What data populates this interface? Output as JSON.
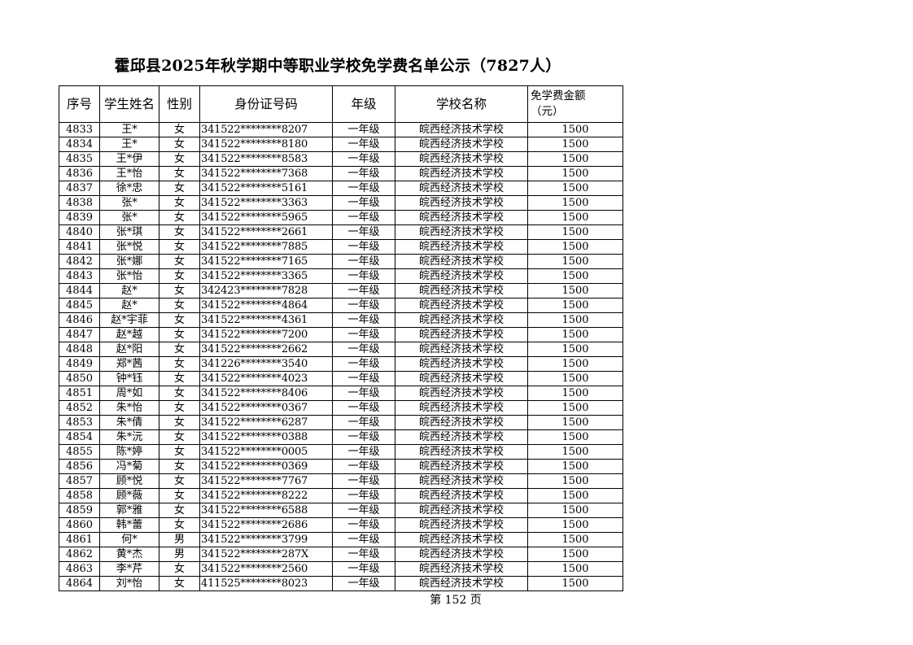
{
  "title": "霍邱县2025年秋学期中等职业学校免学费名单公示（7827人）",
  "headers": {
    "seq": "序号",
    "name": "学生姓名",
    "gender": "性别",
    "id": "身份证号码",
    "grade": "年级",
    "school": "学校名称",
    "amount": "免学费金额",
    "amount_unit": "（元）"
  },
  "rows": [
    [
      "4833",
      "王*",
      "女",
      "341522********8207",
      "一年级",
      "皖西经济技术学校",
      "1500"
    ],
    [
      "4834",
      "王*",
      "女",
      "341522********8180",
      "一年级",
      "皖西经济技术学校",
      "1500"
    ],
    [
      "4835",
      "王*伊",
      "女",
      "341522********8583",
      "一年级",
      "皖西经济技术学校",
      "1500"
    ],
    [
      "4836",
      "王*怡",
      "女",
      "341522********7368",
      "一年级",
      "皖西经济技术学校",
      "1500"
    ],
    [
      "4837",
      "徐*忠",
      "女",
      "341522********5161",
      "一年级",
      "皖西经济技术学校",
      "1500"
    ],
    [
      "4838",
      "张*",
      "女",
      "341522********3363",
      "一年级",
      "皖西经济技术学校",
      "1500"
    ],
    [
      "4839",
      "张*",
      "女",
      "341522********5965",
      "一年级",
      "皖西经济技术学校",
      "1500"
    ],
    [
      "4840",
      "张*琪",
      "女",
      "341522********2661",
      "一年级",
      "皖西经济技术学校",
      "1500"
    ],
    [
      "4841",
      "张*悦",
      "女",
      "341522********7885",
      "一年级",
      "皖西经济技术学校",
      "1500"
    ],
    [
      "4842",
      "张*娜",
      "女",
      "341522********7165",
      "一年级",
      "皖西经济技术学校",
      "1500"
    ],
    [
      "4843",
      "张*怡",
      "女",
      "341522********3365",
      "一年级",
      "皖西经济技术学校",
      "1500"
    ],
    [
      "4844",
      "赵*",
      "女",
      "342423********7828",
      "一年级",
      "皖西经济技术学校",
      "1500"
    ],
    [
      "4845",
      "赵*",
      "女",
      "341522********4864",
      "一年级",
      "皖西经济技术学校",
      "1500"
    ],
    [
      "4846",
      "赵*宇菲",
      "女",
      "341522********4361",
      "一年级",
      "皖西经济技术学校",
      "1500"
    ],
    [
      "4847",
      "赵*越",
      "女",
      "341522********7200",
      "一年级",
      "皖西经济技术学校",
      "1500"
    ],
    [
      "4848",
      "赵*阳",
      "女",
      "341522********2662",
      "一年级",
      "皖西经济技术学校",
      "1500"
    ],
    [
      "4849",
      "郑*茜",
      "女",
      "341226********3540",
      "一年级",
      "皖西经济技术学校",
      "1500"
    ],
    [
      "4850",
      "钟*钰",
      "女",
      "341522********4023",
      "一年级",
      "皖西经济技术学校",
      "1500"
    ],
    [
      "4851",
      "周*如",
      "女",
      "341522********8406",
      "一年级",
      "皖西经济技术学校",
      "1500"
    ],
    [
      "4852",
      "朱*怡",
      "女",
      "341522********0367",
      "一年级",
      "皖西经济技术学校",
      "1500"
    ],
    [
      "4853",
      "朱*倩",
      "女",
      "341522********6287",
      "一年级",
      "皖西经济技术学校",
      "1500"
    ],
    [
      "4854",
      "朱*沅",
      "女",
      "341522********0388",
      "一年级",
      "皖西经济技术学校",
      "1500"
    ],
    [
      "4855",
      "陈*婷",
      "女",
      "341522********0005",
      "一年级",
      "皖西经济技术学校",
      "1500"
    ],
    [
      "4856",
      "冯*菊",
      "女",
      "341522********0369",
      "一年级",
      "皖西经济技术学校",
      "1500"
    ],
    [
      "4857",
      "顾*悦",
      "女",
      "341522********7767",
      "一年级",
      "皖西经济技术学校",
      "1500"
    ],
    [
      "4858",
      "顾*薇",
      "女",
      "341522********8222",
      "一年级",
      "皖西经济技术学校",
      "1500"
    ],
    [
      "4859",
      "郭*雅",
      "女",
      "341522********6588",
      "一年级",
      "皖西经济技术学校",
      "1500"
    ],
    [
      "4860",
      "韩*蕾",
      "女",
      "341522********2686",
      "一年级",
      "皖西经济技术学校",
      "1500"
    ],
    [
      "4861",
      "何*",
      "男",
      "341522********3799",
      "一年级",
      "皖西经济技术学校",
      "1500"
    ],
    [
      "4862",
      "黄*杰",
      "男",
      "341522********287X",
      "一年级",
      "皖西经济技术学校",
      "1500"
    ],
    [
      "4863",
      "李*芹",
      "女",
      "341522********2560",
      "一年级",
      "皖西经济技术学校",
      "1500"
    ],
    [
      "4864",
      "刘*怡",
      "女",
      "411525********8023",
      "一年级",
      "皖西经济技术学校",
      "1500"
    ]
  ],
  "footer": "第  152  页"
}
